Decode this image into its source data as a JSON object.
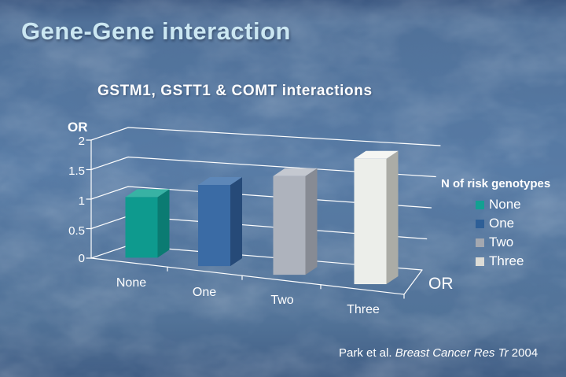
{
  "slide": {
    "title": "Gene-Gene interaction",
    "citation": {
      "prefix": "Park et al. ",
      "journal_italic": "Breast Cancer Res Tr",
      "suffix": " 2004"
    }
  },
  "chart_data": {
    "type": "bar",
    "projection": "3d-perspective",
    "title": "GSTM1, GSTT1 & COMT interactions",
    "categories": [
      "None",
      "One",
      "Two",
      "Three"
    ],
    "values": [
      1.0,
      1.25,
      1.45,
      1.75
    ],
    "value_axis_label": "OR",
    "series_axis_label": "OR",
    "ticks": [
      "2",
      "1.5",
      "1",
      "0.5",
      "0"
    ],
    "tick_values": [
      0,
      0.5,
      1,
      1.5,
      2
    ],
    "ylim": [
      0,
      2
    ],
    "grid": true,
    "axis_color": "#ffffff",
    "text_color": "#ffffff",
    "background_color": "#56799f",
    "legend": {
      "title": "N of risk genotypes",
      "position": "right",
      "items": [
        {
          "label": "None",
          "color": "#13a092"
        },
        {
          "label": "One",
          "color": "#2e5f97"
        },
        {
          "label": "Two",
          "color": "#a4a8b0"
        },
        {
          "label": "Three",
          "color": "#dddcd6"
        }
      ]
    },
    "bar_colors": [
      {
        "front": "#0e9a8e",
        "top": "#38b2a4",
        "side": "#0b7b72"
      },
      {
        "front": "#3a6ba5",
        "top": "#5d87b8",
        "side": "#264a78"
      },
      {
        "front": "#aeb3bd",
        "top": "#c4c8d0",
        "side": "#878b94"
      },
      {
        "front": "#eceeea",
        "top": "#f5f6f3",
        "side": "#abaca6"
      }
    ]
  }
}
